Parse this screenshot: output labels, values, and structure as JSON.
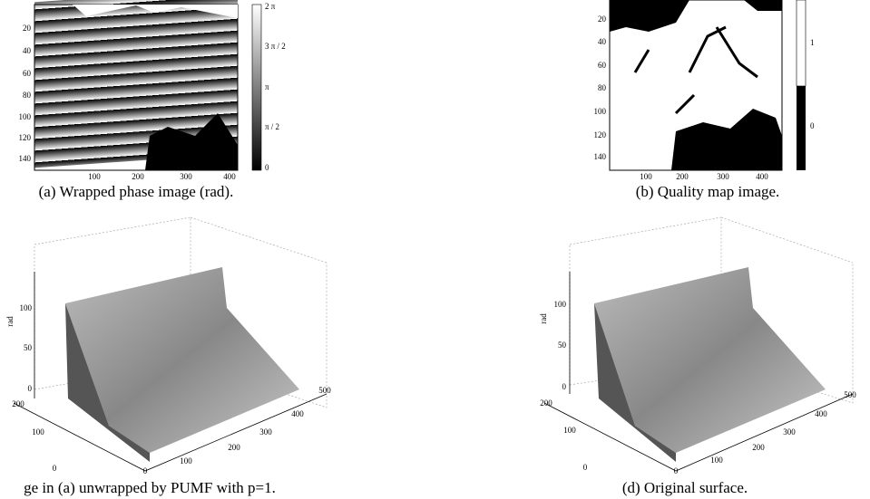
{
  "panels": [
    {
      "caption": "(a) Wrapped phase image (rad).",
      "yticks": [
        "20",
        "40",
        "60",
        "80",
        "100",
        "120",
        "140"
      ],
      "xticks": [
        "100",
        "200",
        "300",
        "400"
      ],
      "colorbar_ticks": [
        "2 π",
        "3 π / 2",
        "π",
        "π / 2",
        "0"
      ]
    },
    {
      "caption": "(b) Quality map image.",
      "yticks": [
        "20",
        "40",
        "60",
        "80",
        "100",
        "120",
        "140"
      ],
      "xticks": [
        "100",
        "200",
        "300",
        "400"
      ],
      "colorbar_ticks": [
        "1",
        "0"
      ]
    },
    {
      "caption": "ge in (a) unwrapped by PUMF with p=1.",
      "zlabel": "rad",
      "zticks": [
        "100",
        "50",
        "0"
      ],
      "yticks": [
        "200",
        "100",
        "0"
      ],
      "xticks": [
        "0",
        "100",
        "200",
        "300",
        "400",
        "500"
      ]
    },
    {
      "caption": "(d) Original surface.",
      "zlabel": "rad",
      "zticks": [
        "100",
        "50",
        "0"
      ],
      "yticks": [
        "200",
        "100",
        "0"
      ],
      "xticks": [
        "0",
        "100",
        "200",
        "300",
        "400",
        "500"
      ]
    }
  ]
}
